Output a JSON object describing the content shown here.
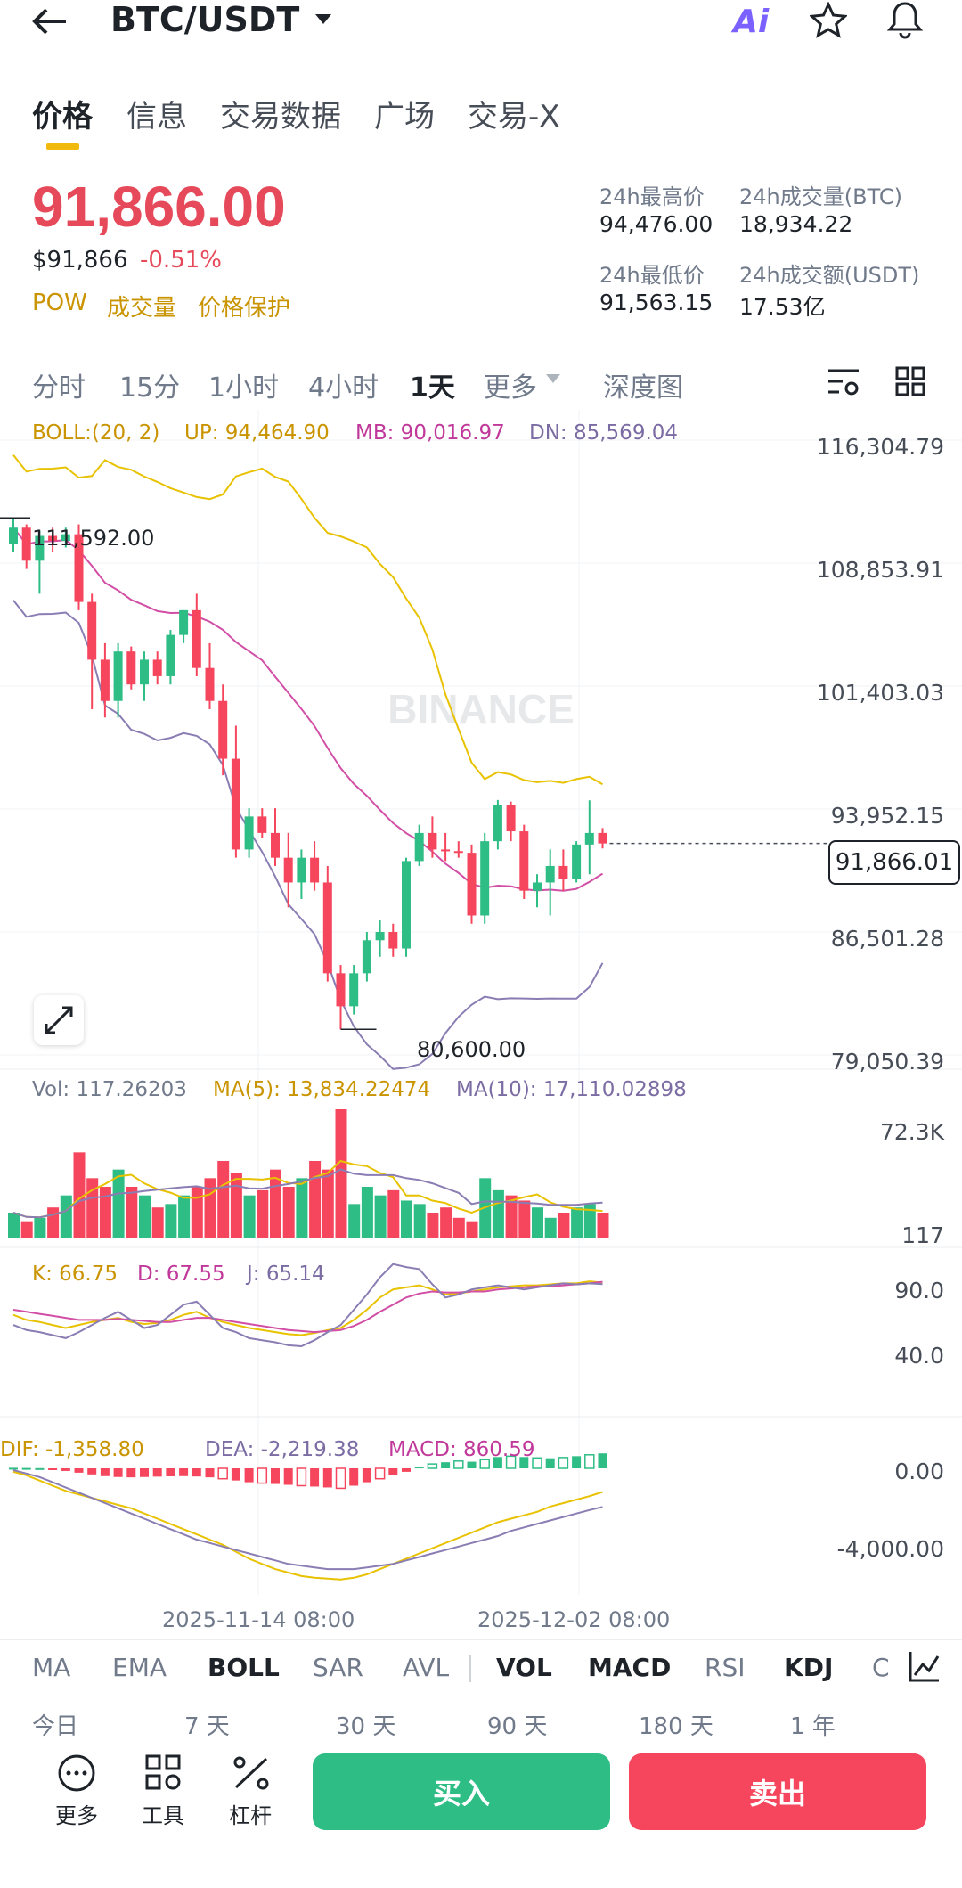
{
  "header": {
    "title": "BTC/USDT",
    "ai_label": "Ai"
  },
  "tabs": [
    "价格",
    "信息",
    "交易数据",
    "广场",
    "交易-X"
  ],
  "price": {
    "last": "91,866.00",
    "usd": "$91,866",
    "change": "-0.51%",
    "tags": [
      "POW",
      "成交量",
      "价格保护"
    ]
  },
  "stats": {
    "high_label": "24h最高价",
    "high": "94,476.00",
    "vol_btc_label": "24h成交量(BTC)",
    "vol_btc": "18,934.22",
    "low_label": "24h最低价",
    "low": "91,563.15",
    "vol_usdt_label": "24h成交额(USDT)",
    "vol_usdt": "17.53亿"
  },
  "intervals": [
    "分时",
    "15分",
    "1小时",
    "4小时",
    "1天",
    "更多",
    "深度图"
  ],
  "boll": {
    "label": "BOLL:(20, 2)",
    "up": "UP: 94,464.90",
    "mb": "MB: 90,016.97",
    "dn": "DN: 85,569.04"
  },
  "price_axis": [
    "116,304.79",
    "108,853.91",
    "101,403.03",
    "93,952.15",
    "86,501.28",
    "79,050.39"
  ],
  "current_price_tag": "91,866.01",
  "high_marker": "111,592.00",
  "low_marker": "80,600.00",
  "watermark": "BINANCE",
  "vol": {
    "vol": "Vol: 117.26203",
    "ma5": "MA(5): 13,834.22474",
    "ma10": "MA(10): 17,110.02898",
    "axis_top": "72.3K",
    "axis_bottom": "117"
  },
  "kdj": {
    "k": "K: 66.75",
    "d": "D: 67.55",
    "j": "J: 65.14",
    "axis_top": "90.0",
    "axis_mid": "40.0"
  },
  "macd": {
    "dif": "DIF: -1,358.80",
    "dea": "DEA: -2,219.38",
    "macd": "MACD: 860.59",
    "axis_top": "0.00",
    "axis_bottom": "-4,000.00"
  },
  "dates": [
    "2025-11-14 08:00",
    "2025-12-02 08:00"
  ],
  "indicator_tabs": [
    "MA",
    "EMA",
    "BOLL",
    "SAR",
    "AVL",
    "VOL",
    "MACD",
    "RSI",
    "KDJ",
    "C"
  ],
  "ranges": [
    "今日",
    "7 天",
    "30 天",
    "90 天",
    "180 天",
    "1 年"
  ],
  "footer": {
    "more": "更多",
    "tools": "工具",
    "leverage": "杠杆",
    "buy": "买入",
    "sell": "卖出"
  },
  "colors": {
    "up": "#2ebd85",
    "down": "#f6465d",
    "accent": "#f0b90b"
  },
  "chart_data": {
    "type": "candlestick",
    "candles": [
      [
        110000,
        111592,
        109500,
        111000
      ],
      [
        111000,
        111200,
        108500,
        109000
      ],
      [
        109000,
        110800,
        107000,
        110500
      ],
      [
        110500,
        111000,
        109500,
        110200
      ],
      [
        110200,
        111000,
        109800,
        110600
      ],
      [
        110600,
        111200,
        106000,
        106500
      ],
      [
        106500,
        107000,
        100000,
        103000
      ],
      [
        103000,
        104000,
        99500,
        100500
      ],
      [
        100500,
        104000,
        99500,
        103500
      ],
      [
        103500,
        103800,
        101200,
        101500
      ],
      [
        101500,
        103500,
        100500,
        103000
      ],
      [
        103000,
        103500,
        101500,
        102000
      ],
      [
        102000,
        104800,
        101500,
        104500
      ],
      [
        104500,
        106000,
        104000,
        106000
      ],
      [
        106000,
        107000,
        102000,
        102500
      ],
      [
        102500,
        104000,
        100000,
        100500
      ],
      [
        100500,
        101500,
        96000,
        97000
      ],
      [
        97000,
        99000,
        91000,
        91500
      ],
      [
        91500,
        94000,
        91000,
        93500
      ],
      [
        93500,
        94000,
        92200,
        92500
      ],
      [
        92500,
        94000,
        90500,
        91000
      ],
      [
        91000,
        92500,
        88000,
        89500
      ],
      [
        89500,
        91500,
        88500,
        91000
      ],
      [
        91000,
        92000,
        89000,
        89500
      ],
      [
        89500,
        90500,
        83500,
        84000
      ],
      [
        84000,
        84500,
        80600,
        82000
      ],
      [
        82000,
        84500,
        81500,
        84000
      ],
      [
        84000,
        86500,
        83500,
        86000
      ],
      [
        86000,
        87200,
        85000,
        86500
      ],
      [
        86500,
        87000,
        85000,
        85500
      ],
      [
        85500,
        91000,
        85000,
        90800
      ],
      [
        90800,
        93000,
        90500,
        92500
      ],
      [
        92500,
        93500,
        91000,
        91500
      ],
      [
        91500,
        92500,
        90800,
        91400
      ],
      [
        91400,
        92000,
        91000,
        91300
      ],
      [
        91300,
        91800,
        87000,
        87500
      ],
      [
        87500,
        92500,
        87000,
        92000
      ],
      [
        92000,
        94500,
        91500,
        94200
      ],
      [
        94200,
        94400,
        92000,
        92600
      ],
      [
        92600,
        93000,
        88500,
        89000
      ],
      [
        89000,
        90000,
        88000,
        89500
      ],
      [
        89500,
        91500,
        87500,
        90500
      ],
      [
        90500,
        91500,
        89000,
        89700
      ],
      [
        89700,
        92000,
        89500,
        91800
      ],
      [
        91800,
        94476,
        90000,
        92500
      ],
      [
        92500,
        92800,
        91563,
        91866
      ]
    ]
  }
}
